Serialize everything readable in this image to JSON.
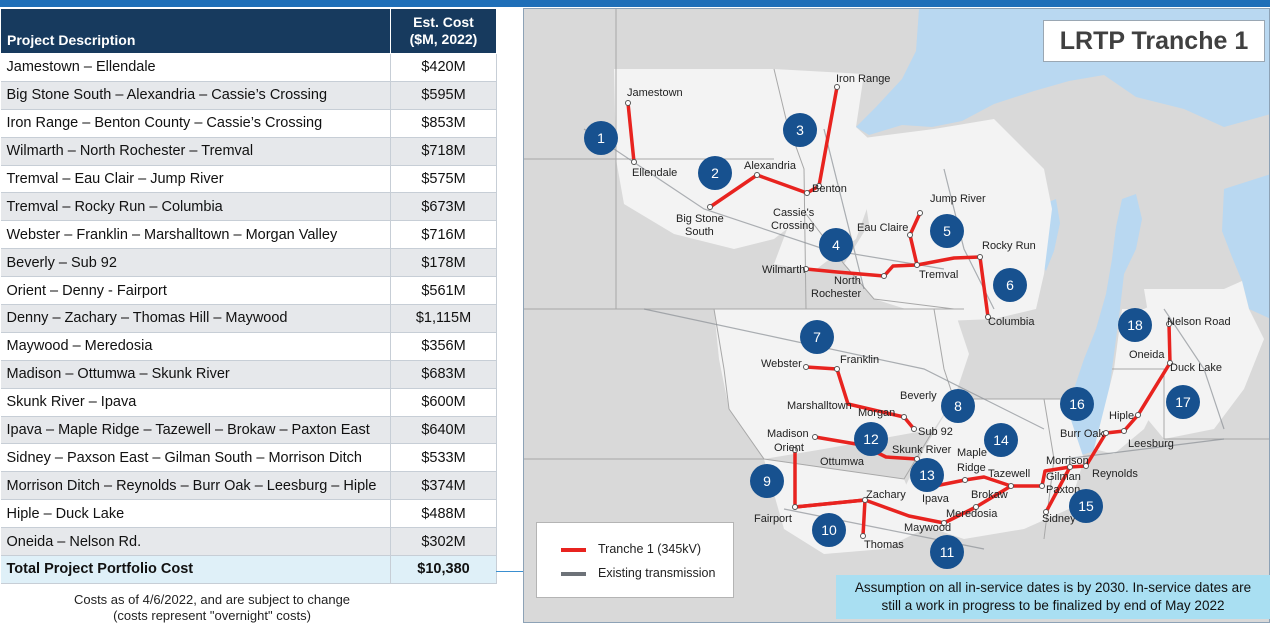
{
  "table": {
    "header_desc": "Project Description",
    "header_cost_line1": "Est. Cost",
    "header_cost_line2": "($M, 2022)",
    "rows": [
      {
        "desc": "Jamestown – Ellendale",
        "cost": "$420M"
      },
      {
        "desc": "Big Stone South – Alexandria – Cassie’s Crossing",
        "cost": "$595M"
      },
      {
        "desc": "Iron Range – Benton County – Cassie’s Crossing",
        "cost": "$853M"
      },
      {
        "desc": "Wilmarth – North Rochester – Tremval",
        "cost": "$718M"
      },
      {
        "desc": "Tremval – Eau Clair – Jump River",
        "cost": "$575M"
      },
      {
        "desc": "Tremval – Rocky Run – Columbia",
        "cost": "$673M"
      },
      {
        "desc": "Webster – Franklin – Marshalltown – Morgan Valley",
        "cost": "$716M"
      },
      {
        "desc": "Beverly – Sub 92",
        "cost": "$178M"
      },
      {
        "desc": "Orient – Denny - Fairport",
        "cost": "$561M"
      },
      {
        "desc": "Denny – Zachary – Thomas Hill – Maywood",
        "cost": "$1,115M"
      },
      {
        "desc": "Maywood – Meredosia",
        "cost": "$356M"
      },
      {
        "desc": "Madison – Ottumwa – Skunk River",
        "cost": "$683M"
      },
      {
        "desc": "Skunk River – Ipava",
        "cost": "$600M"
      },
      {
        "desc": "Ipava – Maple Ridge – Tazewell – Brokaw – Paxton East",
        "cost": "$640M"
      },
      {
        "desc": "Sidney – Paxson East – Gilman South – Morrison Ditch",
        "cost": "$533M"
      },
      {
        "desc": "Morrison Ditch – Reynolds – Burr Oak – Leesburg – Hiple",
        "cost": "$374M"
      },
      {
        "desc": "Hiple – Duck Lake",
        "cost": "$488M"
      },
      {
        "desc": "Oneida – Nelson Rd.",
        "cost": "$302M"
      }
    ],
    "total": {
      "desc": "Total Project Portfolio Cost",
      "cost": "$10,380"
    }
  },
  "note": {
    "line1": "Costs as of 4/6/2022, and are subject to change",
    "line2": "(costs represent \"overnight\" costs)"
  },
  "map": {
    "title": "LRTP Tranche 1",
    "legend": {
      "tranche_label": "Tranche 1 (345kV)",
      "existing_label": "Existing transmission",
      "tranche_color": "#e8231f",
      "existing_color": "#6d7278"
    },
    "assumption": {
      "line1": "Assumption on all in-service dates is by 2030.  In-service dates are",
      "line2": "still a work in progress to be finalized by end of May 2022"
    },
    "colors": {
      "lake": "#b9d8f1",
      "land": "#d9d9d9",
      "land_highlight": "#f3f3f3",
      "marker": "#17518f"
    },
    "cities": {
      "jamestown": "Jamestown",
      "ellendale": "Ellendale",
      "iron_range": "Iron Range",
      "alexandria": "Alexandria",
      "benton": "Benton",
      "big_stone": "Big Stone",
      "south": "South",
      "cassies": "Cassie's",
      "crossing": "Crossing",
      "eau_claire": "Eau Claire",
      "jump_river": "Jump River",
      "rocky_run": "Rocky Run",
      "wilmarth": "Wilmarth",
      "north": "North",
      "rochester": "Rochester",
      "tremval": "Tremval",
      "columbia": "Columbia",
      "webster": "Webster",
      "franklin": "Franklin",
      "beverly": "Beverly",
      "marshalltown": "Marshalltown",
      "morgan": "Morgan",
      "sub92": "Sub 92",
      "madison": "Madison",
      "orient": "Orient",
      "skunk_river": "Skunk River",
      "maple": "Maple",
      "ridge": "Ridge",
      "ottumwa": "Ottumwa",
      "tazewell": "Tazewell",
      "morrison": "Morrison",
      "zachary": "Zachary",
      "ipava": "Ipava",
      "brokaw": "Brokaw",
      "gilman": "Gilman",
      "paxton": "Paxton",
      "reynolds": "Reynolds",
      "fairport": "Fairport",
      "meredosia": "Meredosia",
      "sidney": "Sidney",
      "maywood": "Maywood",
      "thomas": "Thomas",
      "nelson_road": "Nelson Road",
      "oneida": "Oneida",
      "duck_lake": "Duck Lake",
      "hiple": "Hiple",
      "burr_oak": "Burr Oak",
      "leesburg": "Leesburg"
    },
    "markers": [
      "1",
      "2",
      "3",
      "4",
      "5",
      "6",
      "7",
      "8",
      "9",
      "10",
      "11",
      "12",
      "13",
      "14",
      "15",
      "16",
      "17",
      "18"
    ]
  }
}
